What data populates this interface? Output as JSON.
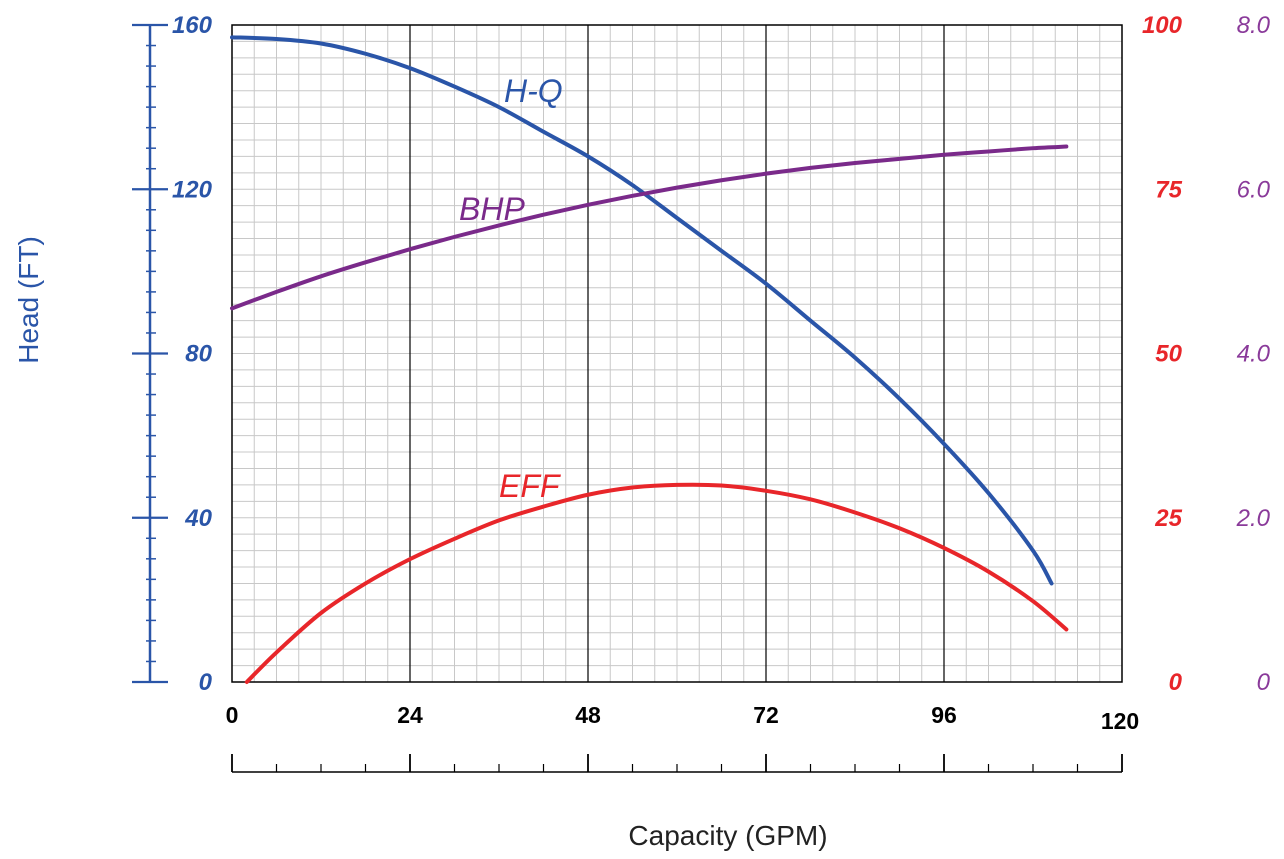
{
  "chart_data": {
    "type": "line",
    "xlabel": "Capacity (GPM)",
    "ylabel": "Head (FT)",
    "xlim": [
      0,
      120
    ],
    "ylim": [
      0,
      160
    ],
    "x_ticks": [
      "0",
      "24",
      "48",
      "72",
      "96",
      "120"
    ],
    "y_ticks_left": [
      "0",
      "40",
      "80",
      "120",
      "160"
    ],
    "y_ticks_eff": [
      "0",
      "25",
      "50",
      "75",
      "100"
    ],
    "y_ticks_bhp": [
      "0",
      "2.0",
      "4.0",
      "6.0",
      "8.0"
    ],
    "grid": true,
    "colors": {
      "head_axis": "#2a55a8",
      "hq": "#2a55a8",
      "eff": "#e8262a",
      "bhp": "#7a2a8a",
      "bhp_ticks": "#8a3a9a",
      "grid_minor": "#c8c8c8",
      "grid_major": "#000000"
    },
    "series": [
      {
        "name": "H-Q",
        "axis": "head",
        "x": [
          0,
          6,
          12,
          18,
          24,
          30,
          36,
          42,
          48,
          54,
          60,
          66,
          72,
          78,
          84,
          90,
          96,
          102,
          108,
          110.5
        ],
        "y": [
          157,
          156.6,
          155.5,
          153,
          149.5,
          145,
          140,
          134,
          128,
          121,
          113,
          105,
          97,
          88,
          79,
          69,
          58,
          46,
          32,
          24
        ]
      },
      {
        "name": "BHP",
        "axis": "bhp",
        "x": [
          0,
          6,
          12,
          18,
          24,
          30,
          36,
          42,
          48,
          54,
          60,
          66,
          72,
          78,
          84,
          90,
          96,
          102,
          108,
          112.5
        ],
        "y": [
          4.55,
          4.75,
          4.94,
          5.11,
          5.27,
          5.42,
          5.56,
          5.69,
          5.81,
          5.92,
          6.02,
          6.11,
          6.19,
          6.26,
          6.32,
          6.37,
          6.42,
          6.46,
          6.5,
          6.52
        ]
      },
      {
        "name": "EFF",
        "axis": "eff",
        "x": [
          2,
          6,
          12,
          18,
          24,
          30,
          36,
          42,
          48,
          54,
          60,
          66,
          72,
          78,
          84,
          90,
          96,
          102,
          108,
          112.5
        ],
        "y": [
          0,
          4.5,
          10.5,
          15,
          18.7,
          21.8,
          24.6,
          26.7,
          28.5,
          29.6,
          30.0,
          29.9,
          29.1,
          27.8,
          25.8,
          23.4,
          20.4,
          16.8,
          12.3,
          8.0
        ]
      }
    ]
  }
}
